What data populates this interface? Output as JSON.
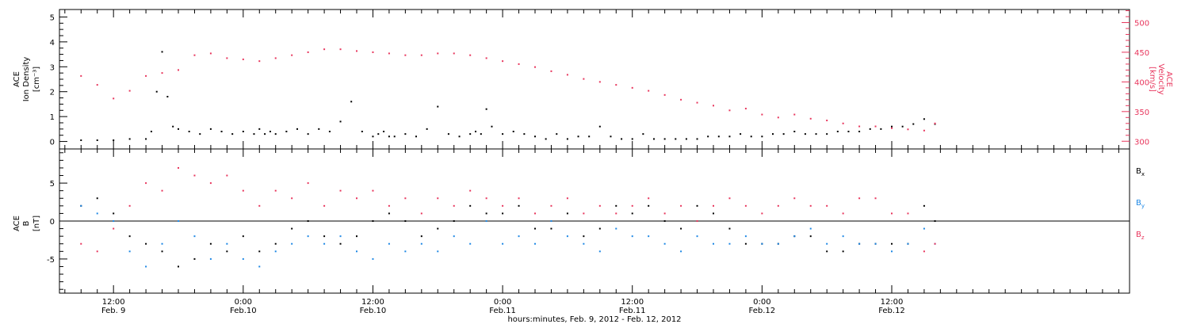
{
  "chart_data": [
    {
      "type": "scatter",
      "panel": "plasma",
      "ylabel_left": [
        "ACE",
        "Ion Density",
        "[cm⁻³]"
      ],
      "ylabel_right": [
        "ACE",
        "Velocity",
        "[km/s]"
      ],
      "ylim_left": [
        -0.3,
        5.3
      ],
      "ylim_right": [
        287,
        522
      ],
      "yticks_left": [
        "0",
        "1",
        "2",
        "3",
        "4",
        "5"
      ],
      "yticks_right": [
        "300",
        "350",
        "400",
        "450",
        "500"
      ],
      "series": [
        {
          "axis": "left",
          "color": "#000000",
          "x": [
            0,
            3,
            6,
            9,
            12,
            13,
            14,
            15,
            16,
            17,
            18,
            20,
            22,
            24,
            26,
            28,
            30,
            32,
            33,
            34,
            35,
            36,
            38,
            40,
            42,
            44,
            46,
            48,
            50,
            52,
            54,
            55,
            56,
            57,
            58,
            60,
            62,
            64,
            66,
            68,
            70,
            72,
            73,
            74,
            75,
            76,
            78,
            80,
            82,
            84,
            86,
            88,
            90,
            92,
            94,
            96,
            98,
            100,
            102,
            104,
            106,
            108,
            110,
            112,
            114,
            116,
            118,
            120,
            122,
            124,
            126,
            128,
            130,
            132,
            134,
            136,
            138,
            140,
            142,
            144,
            146,
            148,
            150,
            152,
            154,
            156,
            158
          ],
          "values": [
            0.05,
            0.05,
            0.05,
            0.1,
            0.1,
            0.4,
            2.0,
            3.6,
            1.8,
            0.6,
            0.5,
            0.4,
            0.3,
            0.5,
            0.4,
            0.3,
            0.4,
            0.3,
            0.5,
            0.3,
            0.4,
            0.3,
            0.4,
            0.5,
            0.3,
            0.5,
            0.4,
            0.8,
            1.6,
            0.4,
            0.2,
            0.3,
            0.4,
            0.2,
            0.2,
            0.3,
            0.2,
            0.5,
            1.4,
            0.3,
            0.2,
            0.3,
            0.4,
            0.3,
            1.3,
            0.6,
            0.3,
            0.4,
            0.3,
            0.2,
            0.1,
            0.3,
            0.1,
            0.2,
            0.2,
            0.6,
            0.2,
            0.1,
            0.1,
            0.3,
            0.1,
            0.1,
            0.1,
            0.1,
            0.1,
            0.2,
            0.2,
            0.2,
            0.3,
            0.2,
            0.2,
            0.3,
            0.3,
            0.4,
            0.3,
            0.3,
            0.3,
            0.4,
            0.4,
            0.4,
            0.5,
            0.5,
            0.6,
            0.6,
            0.7,
            0.9,
            0.7
          ]
        },
        {
          "axis": "right",
          "color": "#e8365d",
          "x": [
            0,
            3,
            6,
            9,
            12,
            15,
            18,
            21,
            24,
            27,
            30,
            33,
            36,
            39,
            42,
            45,
            48,
            51,
            54,
            57,
            60,
            63,
            66,
            69,
            72,
            75,
            78,
            81,
            84,
            87,
            90,
            93,
            96,
            99,
            102,
            105,
            108,
            111,
            114,
            117,
            120,
            123,
            126,
            129,
            132,
            135,
            138,
            141,
            144,
            147,
            150,
            153,
            156,
            158
          ],
          "values": [
            410,
            395,
            372,
            385,
            410,
            415,
            420,
            445,
            448,
            440,
            438,
            435,
            440,
            445,
            450,
            455,
            455,
            452,
            450,
            448,
            445,
            445,
            448,
            448,
            445,
            440,
            435,
            430,
            425,
            418,
            412,
            405,
            400,
            395,
            390,
            385,
            378,
            370,
            365,
            360,
            352,
            355,
            345,
            340,
            345,
            338,
            335,
            330,
            325,
            325,
            322,
            320,
            318,
            330
          ]
        }
      ]
    },
    {
      "type": "scatter",
      "panel": "magnetic-field",
      "ylabel_left": [
        "ACE",
        "B",
        "[nT]"
      ],
      "ylim": [
        -9.5,
        9.5
      ],
      "yticks": [
        "-5",
        "0",
        "5"
      ],
      "legend_position": "right",
      "series": [
        {
          "name": "Bx",
          "legend_main": "B",
          "legend_sub": "x",
          "color": "#000000",
          "x": [
            0,
            3,
            6,
            9,
            12,
            15,
            18,
            21,
            24,
            27,
            30,
            33,
            36,
            39,
            42,
            45,
            48,
            51,
            54,
            57,
            60,
            63,
            66,
            69,
            72,
            75,
            78,
            81,
            84,
            87,
            90,
            93,
            96,
            99,
            102,
            105,
            108,
            111,
            114,
            117,
            120,
            123,
            126,
            129,
            132,
            135,
            138,
            141,
            144,
            147,
            150,
            153,
            156,
            158
          ],
          "values": [
            2,
            3,
            1,
            -2,
            -3,
            -4,
            -6,
            -5,
            -3,
            -4,
            -2,
            -4,
            -3,
            -1,
            0,
            -2,
            -3,
            -2,
            0,
            1,
            0,
            -2,
            -1,
            0,
            2,
            1,
            1,
            2,
            -1,
            -1,
            1,
            -2,
            -1,
            2,
            1,
            2,
            0,
            -1,
            2,
            1,
            -1,
            -3,
            -3,
            -3,
            -2,
            -2,
            -4,
            -4,
            -3,
            -3,
            -3,
            -3,
            2,
            0
          ]
        },
        {
          "name": "By",
          "legend_main": "B",
          "legend_sub": "y",
          "color": "#1e88e5",
          "x": [
            0,
            3,
            6,
            9,
            12,
            15,
            18,
            21,
            24,
            27,
            30,
            33,
            36,
            39,
            42,
            45,
            48,
            51,
            54,
            57,
            60,
            63,
            66,
            69,
            72,
            75,
            78,
            81,
            84,
            87,
            90,
            93,
            96,
            99,
            102,
            105,
            108,
            111,
            114,
            117,
            120,
            123,
            126,
            129,
            132,
            135,
            138,
            141,
            144,
            147,
            150,
            153,
            156,
            158
          ],
          "values": [
            2,
            1,
            0,
            -4,
            -6,
            -3,
            0,
            -2,
            -5,
            -3,
            -5,
            -6,
            -4,
            -3,
            -2,
            -3,
            -2,
            -4,
            -5,
            -3,
            -4,
            -3,
            -4,
            -2,
            -3,
            0,
            -3,
            -2,
            -3,
            0,
            -2,
            -3,
            -4,
            -1,
            -2,
            -2,
            -3,
            -4,
            -2,
            -3,
            -3,
            -2,
            -3,
            -3,
            -2,
            -1,
            -3,
            -2,
            -3,
            -3,
            -4,
            -3,
            -1,
            -3
          ]
        },
        {
          "name": "Bz",
          "legend_main": "B",
          "legend_sub": "z",
          "color": "#e8365d",
          "x": [
            0,
            3,
            6,
            9,
            12,
            15,
            18,
            21,
            24,
            27,
            30,
            33,
            36,
            39,
            42,
            45,
            48,
            51,
            54,
            57,
            60,
            63,
            66,
            69,
            72,
            75,
            78,
            81,
            84,
            87,
            90,
            93,
            96,
            99,
            102,
            105,
            108,
            111,
            114,
            117,
            120,
            123,
            126,
            129,
            132,
            135,
            138,
            141,
            144,
            147,
            150,
            153,
            156,
            158
          ],
          "values": [
            -3,
            -4,
            -1,
            2,
            5,
            4,
            7,
            6,
            5,
            6,
            4,
            2,
            4,
            3,
            5,
            2,
            4,
            3,
            4,
            2,
            3,
            1,
            3,
            2,
            4,
            3,
            2,
            3,
            1,
            2,
            3,
            1,
            2,
            1,
            2,
            3,
            1,
            2,
            0,
            2,
            3,
            2,
            1,
            2,
            3,
            2,
            2,
            1,
            3,
            3,
            1,
            1,
            -4,
            -3
          ]
        }
      ]
    }
  ],
  "x_axis": {
    "range": [
      -4,
      194
    ],
    "ticks": [
      {
        "x": 6,
        "time": "12:00",
        "date": "Feb. 9"
      },
      {
        "x": 30,
        "time": "0:00",
        "date": "Feb.10"
      },
      {
        "x": 54,
        "time": "12:00",
        "date": "Feb.10"
      },
      {
        "x": 78,
        "time": "0:00",
        "date": "Feb.11"
      },
      {
        "x": 102,
        "time": "12:00",
        "date": "Feb.11"
      },
      {
        "x": 126,
        "time": "0:00",
        "date": "Feb.12"
      },
      {
        "x": 150,
        "time": "12:00",
        "date": "Feb.12"
      }
    ],
    "xlabel": "hours:minutes, Feb.  9, 2012 - Feb. 12, 2012"
  },
  "colors": {
    "axes": "#000000",
    "velocity": "#e8365d",
    "by": "#1e88e5"
  }
}
